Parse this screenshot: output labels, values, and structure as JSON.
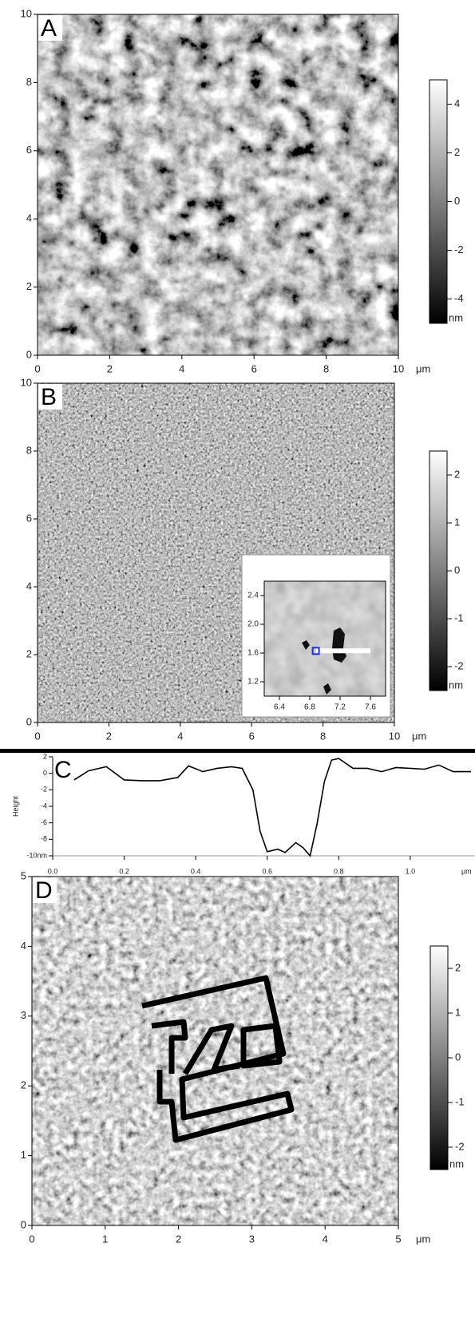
{
  "chart_data": [
    {
      "type": "image",
      "label": "A",
      "xlim": [
        0,
        10
      ],
      "xticks": [
        0,
        2,
        4,
        6,
        8,
        10
      ],
      "ylim": [
        0,
        10
      ],
      "yticks": [
        0,
        2,
        4,
        6,
        8,
        10
      ],
      "x_unit": "μm",
      "colorbar": {
        "lim": [
          -5,
          5
        ],
        "ticks": [
          4,
          2,
          0,
          -2,
          -4
        ],
        "unit": "nm"
      }
    },
    {
      "type": "image",
      "label": "B",
      "xlim": [
        0,
        10
      ],
      "xticks": [
        0,
        2,
        4,
        6,
        8,
        10
      ],
      "ylim": [
        0,
        10
      ],
      "yticks": [
        0,
        2,
        4,
        6,
        8,
        10
      ],
      "x_unit": "μm",
      "colorbar": {
        "lim": [
          -2.5,
          2.5
        ],
        "ticks": [
          2,
          1,
          0,
          -1,
          -2
        ],
        "unit": "nm"
      },
      "inset": {
        "xlim": [
          6.2,
          7.8
        ],
        "xticks": [
          6.4,
          6.8,
          7.2,
          7.6
        ],
        "ylim": [
          1.0,
          2.6
        ],
        "yticks": [
          1.2,
          1.6,
          {
            "value": 2,
            "label": "2.0"
          },
          2.4
        ],
        "profile_line": {
          "x": [
            6.88,
            7.6
          ],
          "y": [
            1.63,
            1.63
          ]
        }
      }
    },
    {
      "type": "line",
      "label": "C",
      "ylabel": "Height",
      "x_unit": "μm",
      "color": "#000000",
      "xlim": [
        0,
        1.17
      ],
      "xticks": [
        {
          "value": 0,
          "label": "0.0"
        },
        0.2,
        0.4,
        0.6,
        0.8,
        {
          "value": 1,
          "label": "1.0"
        }
      ],
      "ylim": [
        -10,
        2
      ],
      "yticks": [
        2,
        0,
        -2,
        -4,
        -6,
        -8,
        {
          "value": -10,
          "label": "-10nm"
        }
      ],
      "x": [
        0.06,
        0.1,
        0.15,
        0.2,
        0.25,
        0.3,
        0.35,
        0.38,
        0.42,
        0.46,
        0.5,
        0.53,
        0.56,
        0.58,
        0.6,
        0.63,
        0.65,
        0.68,
        0.7,
        0.72,
        0.74,
        0.76,
        0.78,
        0.8,
        0.84,
        0.88,
        0.92,
        0.96,
        1.0,
        1.04,
        1.08,
        1.12,
        1.17
      ],
      "values": [
        -0.8,
        0.3,
        0.8,
        -0.8,
        -0.9,
        -0.9,
        -0.5,
        0.9,
        0.2,
        0.6,
        0.8,
        0.6,
        -2,
        -7,
        -9.5,
        -9.2,
        -9.6,
        -8.4,
        -9,
        -10,
        -6,
        -1,
        1.6,
        1.8,
        0.6,
        0.6,
        0.2,
        0.7,
        0.6,
        0.5,
        1.0,
        0.2,
        0.2
      ]
    },
    {
      "type": "image",
      "label": "D",
      "xlim": [
        0,
        5
      ],
      "xticks": [
        0,
        1,
        2,
        3,
        4,
        5
      ],
      "ylim": [
        0,
        5
      ],
      "yticks": [
        0,
        1,
        2,
        3,
        4,
        5
      ],
      "x_unit": "μm",
      "colorbar": {
        "lim": [
          -2.5,
          2.5
        ],
        "ticks": [
          2,
          1,
          0,
          -1,
          -2
        ],
        "unit": "nm"
      }
    }
  ]
}
